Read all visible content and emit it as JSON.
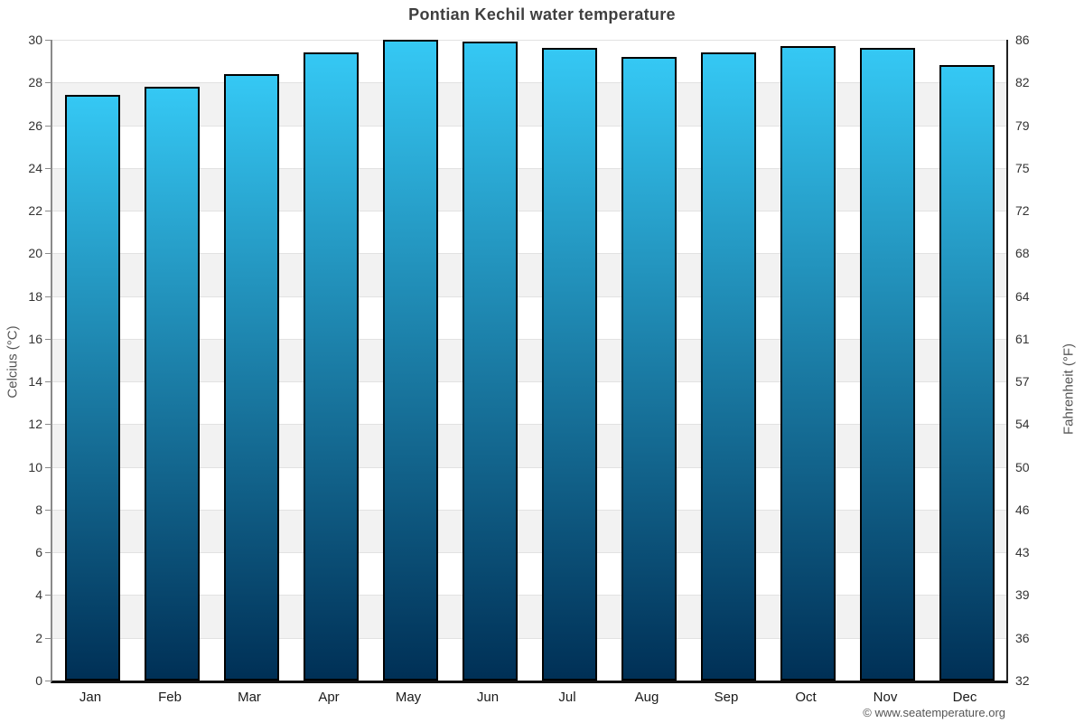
{
  "page": {
    "title": "Pontian Kechil water temperature",
    "footer_credit": "© www.seatemperature.org"
  },
  "chart_data": {
    "type": "bar",
    "title": "Pontian Kechil water temperature",
    "categories": [
      "Jan",
      "Feb",
      "Mar",
      "Apr",
      "May",
      "Jun",
      "Jul",
      "Aug",
      "Sep",
      "Oct",
      "Nov",
      "Dec"
    ],
    "values": [
      27.4,
      27.8,
      28.4,
      29.4,
      30.0,
      29.9,
      29.6,
      29.2,
      29.4,
      29.7,
      29.6,
      28.8
    ],
    "unit": "°C",
    "ylabel_left": "Celcius (°C)",
    "ylabel_right": "Fahrenheit (°F)",
    "ylim": [
      0,
      30
    ],
    "yticks_left": [
      0,
      2,
      4,
      6,
      8,
      10,
      12,
      14,
      16,
      18,
      20,
      22,
      24,
      26,
      28,
      30
    ],
    "yticks_right": [
      32,
      36,
      39,
      43,
      46,
      50,
      54,
      57,
      61,
      64,
      68,
      72,
      75,
      79,
      82,
      86
    ],
    "legend": "none",
    "grid": "horizontal gridlines with alternating background bands",
    "colors": {
      "bar_gradient_top": "#35c8f4",
      "bar_gradient_bottom": "#003056",
      "bar_border": "#000000",
      "band_alt_gray": "#f2f2f2",
      "band_white": "#ffffff",
      "gridline": "#e2e2e2",
      "left_spine": "#8a8a8a",
      "right_spine": "#222222",
      "bottom_spine": "#111111",
      "title_text": "#3f3f3f",
      "tick_text": "#333333",
      "axis_label_text": "#555555",
      "footer_text": "#555555"
    }
  }
}
